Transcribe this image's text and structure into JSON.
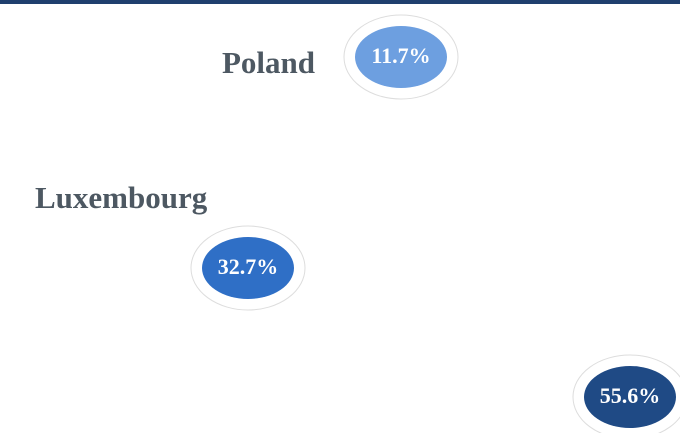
{
  "chart_data": {
    "type": "pie",
    "categories": [
      "Poland",
      "Luxembourg",
      null
    ],
    "values": [
      11.7,
      32.7,
      55.6
    ],
    "value_labels": [
      "11.7%",
      "32.7%",
      "55.6%"
    ],
    "colors": [
      "#6d9fe0",
      "#2f6fc6",
      "#1f4a85"
    ]
  }
}
